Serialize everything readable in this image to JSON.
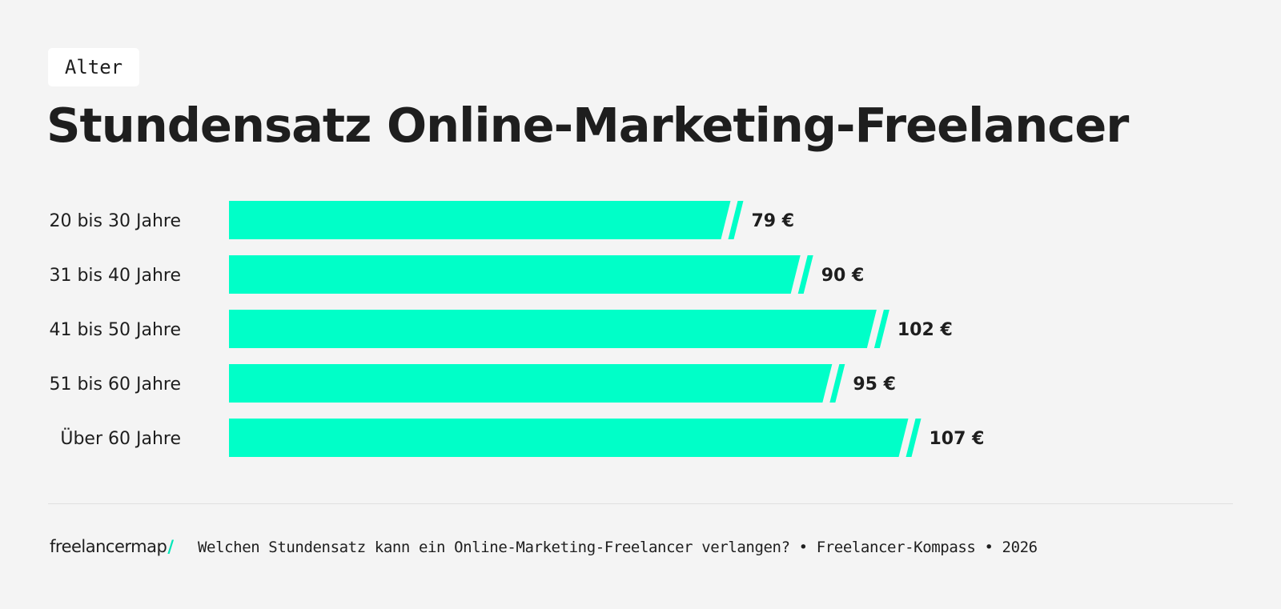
{
  "tag": "Alter",
  "title": "Stundensatz Online-Marketing-Freelancer",
  "brand": {
    "name": "freelancermap",
    "slash": "/"
  },
  "footer_text": "Welchen Stundensatz kann ein Online-Marketing-Freelancer verlangen? • Freelancer-Kompass • 2026",
  "colors": {
    "bar": "#00ffc8",
    "text": "#1e1e1e",
    "background": "#f4f4f4"
  },
  "chart_data": {
    "type": "bar",
    "orientation": "horizontal",
    "categories": [
      "20 bis 30 Jahre",
      "31 bis 40 Jahre",
      "41 bis 50 Jahre",
      "51 bis 60 Jahre",
      "Über 60 Jahre"
    ],
    "values": [
      79,
      90,
      102,
      95,
      107
    ],
    "value_labels": [
      "79 €",
      "90 €",
      "102 €",
      "95 €",
      "107 €"
    ],
    "unit": "€",
    "title": "Stundensatz Online-Marketing-Freelancer",
    "xlabel": "",
    "ylabel": "",
    "grid": false,
    "legend": "none"
  }
}
